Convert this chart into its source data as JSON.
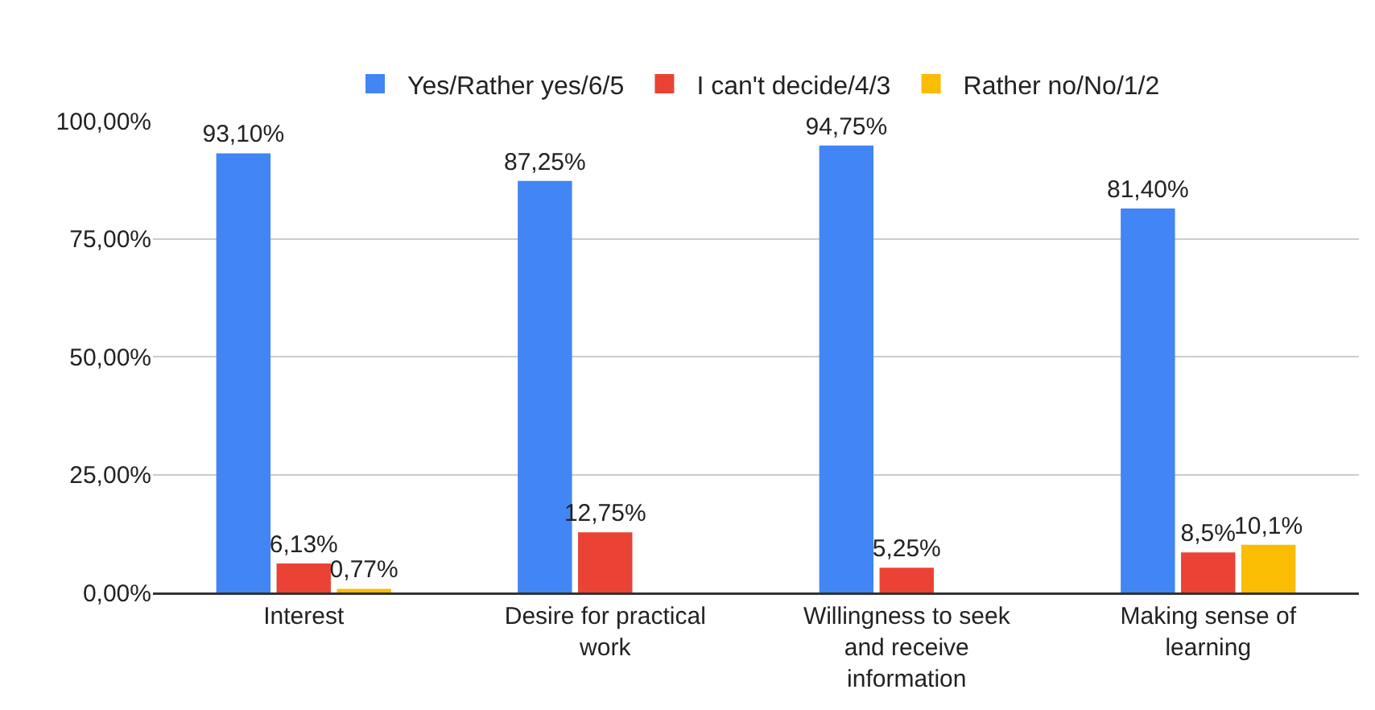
{
  "chart_data": {
    "type": "bar",
    "categories": [
      "Interest",
      "Desire for practical work",
      "Willingness to seek and receive information",
      "Making sense of learning"
    ],
    "series": [
      {
        "name": "Yes/Rather yes/6/5",
        "color": "#4285f4",
        "values": [
          93.1,
          87.25,
          94.75,
          81.4
        ],
        "value_labels": [
          "93,10%",
          "87,25%",
          "94,75%",
          "81,40%"
        ]
      },
      {
        "name": "I can't decide/4/3",
        "color": "#ea4335",
        "values": [
          6.13,
          12.75,
          5.25,
          8.5
        ],
        "value_labels": [
          "6,13%",
          "12,75%",
          "5,25%",
          "8,5%"
        ]
      },
      {
        "name": "Rather no/No/1/2",
        "color": "#fbbc04",
        "values": [
          0.77,
          null,
          null,
          10.1
        ],
        "value_labels": [
          "0,77%",
          null,
          null,
          "10,1%"
        ]
      }
    ],
    "ylim": [
      0,
      100
    ],
    "yticks": [
      {
        "value": 0,
        "label": "0,00%"
      },
      {
        "value": 25,
        "label": "25,00%"
      },
      {
        "value": 50,
        "label": "50,00%"
      },
      {
        "value": 75,
        "label": "75,00%"
      },
      {
        "value": 100,
        "label": "100,00%"
      }
    ],
    "grid": "y",
    "legend": "top"
  }
}
